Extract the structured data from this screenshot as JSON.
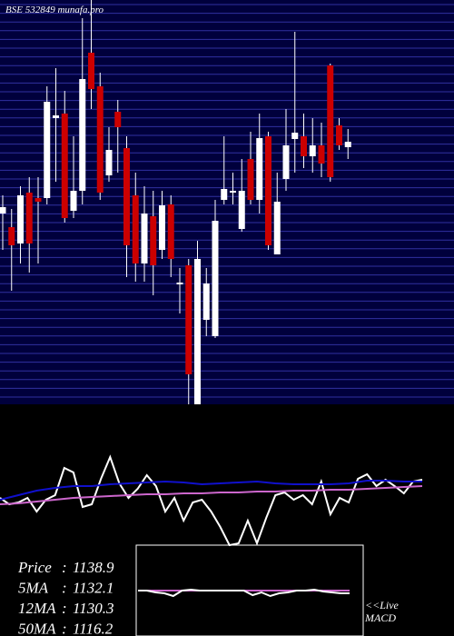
{
  "chart_data": [
    {
      "type": "candlestick",
      "title": "BSE 532849 munafa.pro",
      "ylim": [
        900,
        1256
      ],
      "up_color": "#ffffff",
      "down_color": "#cc0000",
      "background": "#00003c",
      "grid": true,
      "open": [
        1068,
        1056,
        1041.6,
        1086.4,
        1081.6,
        1081.6,
        1152,
        1156,
        1070.4,
        1088,
        1209.6,
        1180,
        1101.6,
        1157.6,
        1125.6,
        1084,
        1024,
        1065.6,
        1036,
        1076,
        1005.6,
        1022.4,
        900,
        974.4,
        960,
        1080,
        1086.4,
        1054.4,
        1116,
        1080,
        1136,
        1032,
        1098.4,
        1133.6,
        1136,
        1118.4,
        1128,
        1198.4,
        1145.6,
        1126.4
      ],
      "high": [
        1084,
        1072,
        1092,
        1100,
        1100,
        1180,
        1196,
        1176,
        1136,
        1240,
        1256,
        1192,
        1144,
        1168,
        1136,
        1104,
        1092,
        1088,
        1088,
        1084,
        1020,
        1028,
        1044,
        1020,
        1080,
        1136,
        1104,
        1116,
        1140,
        1156,
        1140,
        1104,
        1160,
        1228,
        1156,
        1152,
        1148,
        1200,
        1152,
        1142.4
      ],
      "low": [
        1036,
        1000,
        1024,
        1016,
        1024,
        1076,
        1096,
        1060,
        1064,
        1076,
        1160,
        1080,
        1096,
        1104,
        1012,
        1008,
        1008,
        996,
        1028,
        1012,
        980,
        900,
        900,
        960,
        958.4,
        1076,
        1076,
        1052,
        1076,
        1068,
        1036,
        1032,
        1088,
        1104,
        1108,
        1104,
        1100,
        1096,
        1124,
        1116
      ],
      "close": [
        1073.6,
        1040,
        1084,
        1041.6,
        1078.4,
        1166.4,
        1154.4,
        1064,
        1088,
        1186.4,
        1177.6,
        1086.4,
        1124,
        1144,
        1040,
        1024,
        1068,
        1022.4,
        1075.2,
        1028,
        1007.2,
        926.4,
        1028,
        1006.4,
        1061.6,
        1089.6,
        1088,
        1088,
        1080,
        1134.4,
        1040,
        1078.4,
        1128,
        1139.2,
        1118.4,
        1128,
        1112,
        1100,
        1128,
        1131.2
      ]
    },
    {
      "type": "line",
      "ylim": [
        0,
        155
      ],
      "series": [
        {
          "color": "#ffffff",
          "values": [
            52,
            45,
            47,
            52,
            37,
            50,
            55,
            85,
            80,
            42,
            45,
            73,
            97,
            68,
            52,
            62,
            77,
            65,
            37,
            52,
            27,
            47,
            50,
            37,
            20,
            0,
            2,
            27,
            2,
            30,
            55,
            58,
            50,
            55,
            45,
            70,
            34,
            52,
            47,
            73,
            78,
            65,
            72,
            65,
            57,
            70,
            72
          ]
        },
        {
          "color": "#1010cc",
          "values": [
            50,
            55,
            60,
            63,
            65,
            65,
            67,
            68,
            69,
            70,
            69,
            67,
            68,
            69,
            70,
            68,
            67,
            67,
            67,
            68,
            71,
            71,
            70,
            70
          ]
        },
        {
          "color": "#cc66cc",
          "values": [
            45,
            46,
            48,
            50,
            52,
            53,
            54,
            55,
            56,
            56,
            57,
            57,
            58,
            58,
            59,
            59,
            60,
            60,
            61,
            61,
            62,
            63,
            64,
            65
          ]
        }
      ]
    },
    {
      "type": "line",
      "ylim": [
        0,
        100
      ],
      "macd_label": [
        "<<Live",
        "MACD"
      ],
      "series": [
        {
          "color": "#cc66cc",
          "values": [
            50,
            50,
            50,
            50,
            50,
            50,
            50,
            50,
            50,
            50,
            50,
            50,
            50,
            50,
            50,
            50,
            50,
            50,
            50,
            50,
            50,
            50,
            50,
            50,
            50
          ]
        },
        {
          "color": "#ffffff",
          "values": [
            50,
            50,
            48,
            47,
            44,
            50,
            51,
            50,
            50,
            50,
            50,
            50,
            50,
            45,
            48,
            44,
            47,
            48,
            50,
            50,
            51,
            49,
            48,
            47,
            47
          ]
        }
      ]
    }
  ],
  "legend": [
    {
      "label": "Price",
      "value": 1138.9
    },
    {
      "label": "5MA",
      "value": 1132.1
    },
    {
      "label": "12MA",
      "value": 1130.3
    },
    {
      "label": "50MA",
      "value": 1116.2
    }
  ]
}
